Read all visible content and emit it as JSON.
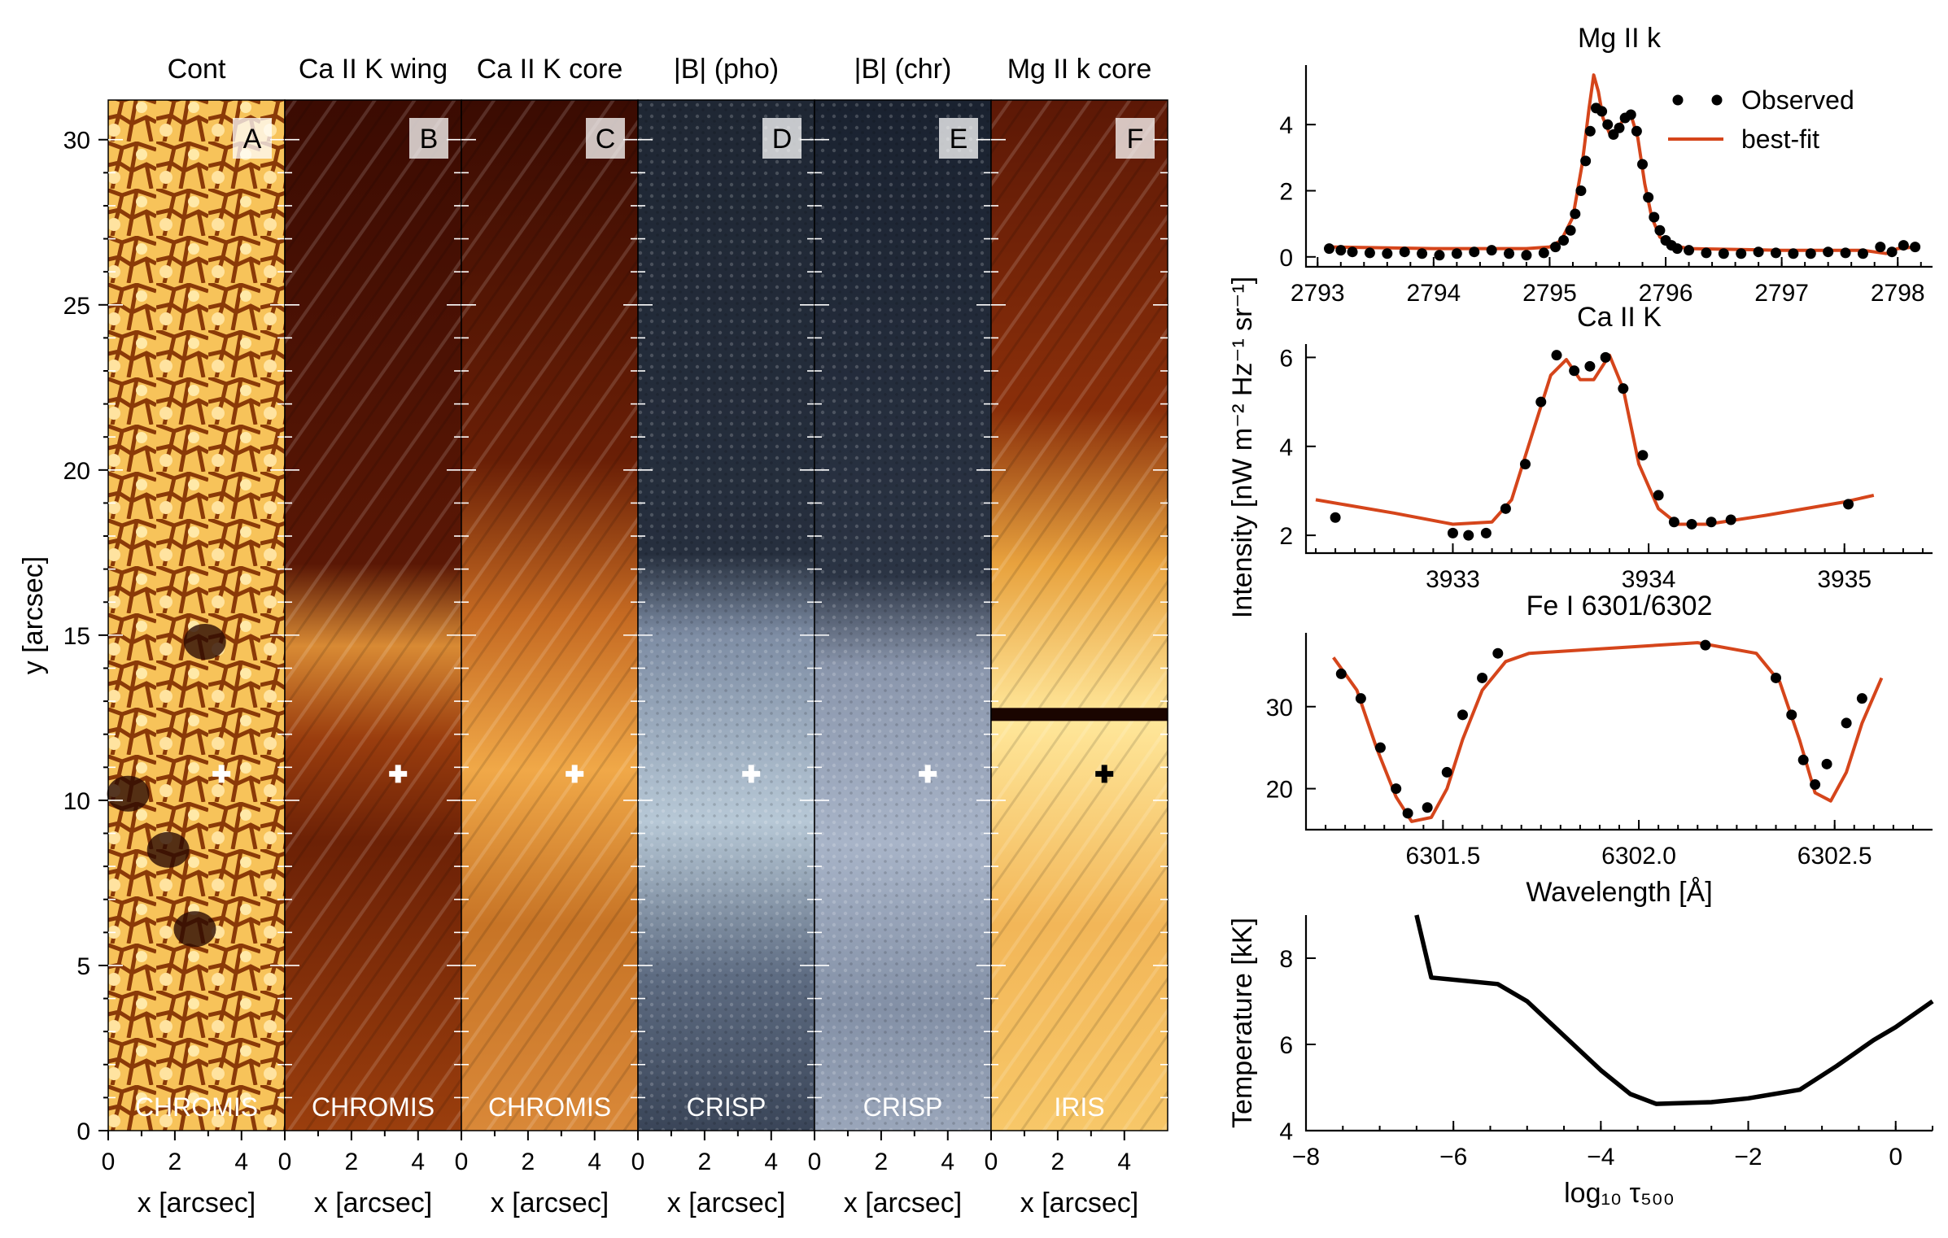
{
  "left_figure": {
    "ylabel": "y [arcsec]",
    "xlabel": "x [arcsec]",
    "y_ticks": [
      0,
      5,
      10,
      15,
      20,
      25,
      30
    ],
    "x_ticks": [
      0,
      2,
      4
    ],
    "ylim": [
      0,
      31.2
    ],
    "xlim": [
      0,
      5.3
    ],
    "marker": {
      "x": 3.4,
      "y": 10.8
    },
    "panels": [
      {
        "title": "Cont",
        "letter": "A",
        "instrument": "CHROMIS"
      },
      {
        "title": "Ca II K wing",
        "letter": "B",
        "instrument": "CHROMIS"
      },
      {
        "title": "Ca II K core",
        "letter": "C",
        "instrument": "CHROMIS"
      },
      {
        "title": "|B| (pho)",
        "letter": "D",
        "instrument": "CRISP"
      },
      {
        "title": "|B| (chr)",
        "letter": "E",
        "instrument": "CRISP"
      },
      {
        "title": "Mg II k core",
        "letter": "F",
        "instrument": "IRIS"
      }
    ]
  },
  "shared_ylabel": "Intensity [nW m⁻² Hz⁻¹ sr⁻¹]",
  "shared_xlabel": "Wavelength [Å]",
  "legend": {
    "observed": "Observed",
    "fit": "best-fit",
    "position": "top-right"
  },
  "colors": {
    "fit": "#d5451b",
    "observed": "#000000"
  },
  "chart_data": [
    {
      "type": "scatter",
      "title": "Mg II k",
      "xlim": [
        2792.9,
        2798.3
      ],
      "ylim": [
        -0.3,
        5.8
      ],
      "x_ticks": [
        2793,
        2794,
        2795,
        2796,
        2797,
        2798
      ],
      "y_ticks": [
        0,
        2,
        4
      ],
      "observed": {
        "x": [
          2793.1,
          2793.2,
          2793.3,
          2793.45,
          2793.6,
          2793.75,
          2793.9,
          2794.05,
          2794.2,
          2794.35,
          2794.5,
          2794.65,
          2794.8,
          2794.95,
          2795.05,
          2795.12,
          2795.18,
          2795.22,
          2795.27,
          2795.31,
          2795.35,
          2795.4,
          2795.45,
          2795.5,
          2795.55,
          2795.6,
          2795.65,
          2795.7,
          2795.75,
          2795.8,
          2795.85,
          2795.9,
          2795.95,
          2796.0,
          2796.05,
          2796.1,
          2796.2,
          2796.35,
          2796.5,
          2796.65,
          2796.8,
          2796.95,
          2797.1,
          2797.25,
          2797.4,
          2797.55,
          2797.7,
          2797.85,
          2797.95,
          2798.05,
          2798.15
        ],
        "y": [
          0.25,
          0.2,
          0.15,
          0.12,
          0.1,
          0.15,
          0.1,
          0.05,
          0.1,
          0.15,
          0.2,
          0.1,
          0.05,
          0.12,
          0.3,
          0.5,
          0.8,
          1.3,
          2.0,
          2.9,
          3.8,
          4.5,
          4.4,
          4.0,
          3.7,
          3.9,
          4.2,
          4.3,
          3.8,
          2.8,
          1.8,
          1.2,
          0.8,
          0.5,
          0.35,
          0.25,
          0.2,
          0.12,
          0.1,
          0.1,
          0.15,
          0.12,
          0.1,
          0.1,
          0.15,
          0.12,
          0.1,
          0.3,
          0.15,
          0.35,
          0.3
        ]
      },
      "fit": {
        "x": [
          2793.1,
          2794.0,
          2794.8,
          2795.0,
          2795.1,
          2795.2,
          2795.28,
          2795.34,
          2795.38,
          2795.42,
          2795.46,
          2795.52,
          2795.58,
          2795.64,
          2795.7,
          2795.76,
          2795.82,
          2795.88,
          2795.95,
          2796.05,
          2796.2,
          2797.0,
          2797.7,
          2797.9,
          2798.0,
          2798.15
        ],
        "y": [
          0.3,
          0.25,
          0.25,
          0.3,
          0.5,
          1.2,
          2.8,
          4.5,
          5.5,
          5.0,
          4.2,
          3.7,
          3.8,
          4.2,
          4.3,
          3.6,
          2.2,
          1.2,
          0.6,
          0.35,
          0.25,
          0.2,
          0.2,
          0.1,
          0.25,
          0.3
        ]
      }
    },
    {
      "type": "scatter",
      "title": "Ca II K",
      "xlim": [
        3932.25,
        3935.45
      ],
      "ylim": [
        1.6,
        6.3
      ],
      "x_ticks": [
        3933,
        3934,
        3935
      ],
      "y_ticks": [
        2,
        4,
        6
      ],
      "observed": {
        "x": [
          3932.4,
          3933.0,
          3933.08,
          3933.17,
          3933.27,
          3933.37,
          3933.45,
          3933.53,
          3933.62,
          3933.7,
          3933.78,
          3933.87,
          3933.97,
          3934.05,
          3934.13,
          3934.22,
          3934.32,
          3934.42,
          3935.02
        ],
        "y": [
          2.4,
          2.05,
          2.0,
          2.05,
          2.6,
          3.6,
          5.0,
          6.05,
          5.7,
          5.8,
          6.0,
          5.3,
          3.8,
          2.9,
          2.3,
          2.25,
          2.3,
          2.35,
          2.7
        ]
      },
      "fit": {
        "x": [
          3932.3,
          3932.7,
          3933.0,
          3933.2,
          3933.3,
          3933.4,
          3933.5,
          3933.58,
          3933.65,
          3933.72,
          3933.8,
          3933.87,
          3933.95,
          3934.05,
          3934.15,
          3934.3,
          3934.6,
          3935.0,
          3935.15
        ],
        "y": [
          2.8,
          2.5,
          2.25,
          2.3,
          2.8,
          4.2,
          5.6,
          5.95,
          5.5,
          5.5,
          6.05,
          5.3,
          3.6,
          2.6,
          2.25,
          2.25,
          2.45,
          2.75,
          2.9
        ]
      }
    },
    {
      "type": "scatter",
      "title": "Fe I 6301/6302",
      "xlim": [
        6301.15,
        6302.75
      ],
      "ylim": [
        15,
        39
      ],
      "x_ticks": [
        6301.5,
        6302.0,
        6302.5
      ],
      "x_tick_labels": [
        "6301.5",
        "6302.0",
        "6302.5"
      ],
      "y_ticks": [
        20,
        30
      ],
      "observed": {
        "x": [
          6301.24,
          6301.29,
          6301.34,
          6301.38,
          6301.41,
          6301.46,
          6301.51,
          6301.55,
          6301.6,
          6301.64,
          6302.17,
          6302.35,
          6302.39,
          6302.42,
          6302.45,
          6302.48,
          6302.53,
          6302.57
        ],
        "y": [
          34,
          31,
          25,
          20,
          17,
          17.7,
          22,
          29,
          33.5,
          36.5,
          37.5,
          33.5,
          29,
          23.5,
          20.5,
          23,
          28,
          31
        ]
      },
      "fit": {
        "x": [
          6301.22,
          6301.28,
          6301.33,
          6301.38,
          6301.42,
          6301.47,
          6301.51,
          6301.55,
          6301.6,
          6301.66,
          6301.72,
          6302.15,
          6302.3,
          6302.36,
          6302.41,
          6302.45,
          6302.49,
          6302.53,
          6302.57,
          6302.62
        ],
        "y": [
          36,
          32,
          25,
          19,
          16,
          16.5,
          20,
          26,
          32,
          35.5,
          36.5,
          37.8,
          36.5,
          33,
          26,
          19.5,
          18.5,
          22,
          28,
          33.5
        ]
      }
    },
    {
      "type": "line",
      "xlabel": "log₁₀ τ₅₀₀",
      "ylabel": "Temperature [kK]",
      "xlim": [
        -8,
        0.5
      ],
      "ylim": [
        4,
        9
      ],
      "x_ticks": [
        -8,
        -6,
        -4,
        -2,
        0
      ],
      "x_tick_labels": [
        "−8",
        "−6",
        "−4",
        "−2",
        "0"
      ],
      "y_ticks": [
        4,
        6,
        8
      ],
      "series": [
        {
          "x": [
            -6.5,
            -6.3,
            -5.4,
            -5.0,
            -4.5,
            -4.0,
            -3.6,
            -3.25,
            -2.5,
            -2.0,
            -1.3,
            -0.8,
            -0.3,
            0.0,
            0.5
          ],
          "y": [
            9.0,
            7.55,
            7.4,
            7.0,
            6.2,
            5.4,
            4.85,
            4.62,
            4.66,
            4.75,
            4.95,
            5.5,
            6.1,
            6.4,
            7.0
          ]
        }
      ]
    }
  ]
}
